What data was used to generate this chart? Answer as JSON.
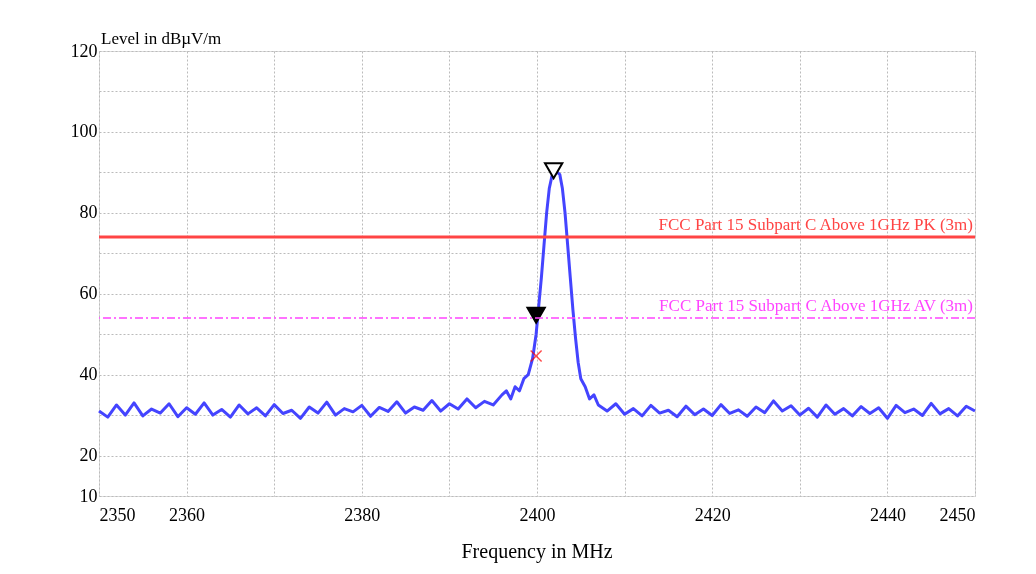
{
  "chart_data": {
    "type": "line",
    "xlabel": "Frequency in MHz",
    "ylabel": "Level in dBµV/m",
    "xlim": [
      2350,
      2450
    ],
    "xticks": [
      2350,
      2360,
      {
        "value": 2370,
        "label": null
      },
      2380,
      {
        "value": 2390,
        "label": null
      },
      2400,
      {
        "value": 2410,
        "label": null
      },
      2420,
      {
        "value": 2430,
        "label": null
      },
      2440,
      2450
    ],
    "ylim": [
      10,
      120
    ],
    "yticks": [
      10,
      20,
      {
        "value": 30,
        "label": null
      },
      40,
      {
        "value": 50,
        "label": null
      },
      60,
      {
        "value": 70,
        "label": null
      },
      80,
      {
        "value": 90,
        "label": null
      },
      100,
      {
        "value": 110,
        "label": null
      },
      120
    ],
    "grid": true,
    "line_style": "solid",
    "marker": "none",
    "series": [
      {
        "type": "line",
        "color": "#4444ff",
        "x": [
          2350,
          2351,
          2352,
          2353,
          2354,
          2355,
          2356,
          2357,
          2358,
          2359,
          2360,
          2361,
          2362,
          2363,
          2364,
          2365,
          2366,
          2367,
          2368,
          2369,
          2370,
          2371,
          2372,
          2373,
          2374,
          2375,
          2376,
          2377,
          2378,
          2379,
          2380,
          2381,
          2382,
          2383,
          2384,
          2385,
          2386,
          2387,
          2388,
          2389,
          2390,
          2391,
          2392,
          2393,
          2394,
          2395,
          2396,
          2396.5,
          2397,
          2397.5,
          2398,
          2398.5,
          2399,
          2399.5,
          2399.9,
          2400.2,
          2400.5,
          2400.8,
          2401.1,
          2401.4,
          2401.7,
          2402,
          2402.3,
          2402.6,
          2402.9,
          2403.2,
          2403.5,
          2403.8,
          2404.1,
          2404.4,
          2404.7,
          2405,
          2405.5,
          2406,
          2406.5,
          2407,
          2408,
          2409,
          2410,
          2411,
          2412,
          2413,
          2414,
          2415,
          2416,
          2417,
          2418,
          2419,
          2420,
          2421,
          2422,
          2423,
          2424,
          2425,
          2426,
          2427,
          2428,
          2429,
          2430,
          2431,
          2432,
          2433,
          2434,
          2435,
          2436,
          2437,
          2438,
          2439,
          2440,
          2441,
          2442,
          2443,
          2444,
          2445,
          2446,
          2447,
          2448,
          2449,
          2450
        ],
        "values": [
          31,
          29.5,
          32.5,
          30,
          33,
          29.8,
          31.5,
          30.5,
          32.8,
          29.6,
          31.8,
          30.2,
          33,
          30,
          31.4,
          29.5,
          32.5,
          30.3,
          31.8,
          29.8,
          32.6,
          30.4,
          31.2,
          29.2,
          32,
          30.5,
          33.2,
          30,
          31.6,
          30.8,
          32.4,
          29.7,
          31.9,
          30.9,
          33.3,
          30.5,
          32,
          31.2,
          33.6,
          31,
          32.8,
          31.5,
          34,
          31.8,
          33.4,
          32.5,
          35,
          36,
          34,
          37,
          36,
          39,
          40,
          44,
          50,
          57,
          64,
          72,
          80,
          86,
          89,
          90.5,
          90,
          89.5,
          86,
          80,
          72,
          64,
          56,
          49,
          43,
          39,
          37,
          34,
          35,
          32.5,
          31,
          32.8,
          30.2,
          31.6,
          29.8,
          32.4,
          30.5,
          31.2,
          29.6,
          32.2,
          30.1,
          31.5,
          29.9,
          32.6,
          30.4,
          31.3,
          29.7,
          32,
          30.6,
          33.5,
          31,
          32.3,
          30,
          31.7,
          29.5,
          32.5,
          30.2,
          31.6,
          29.8,
          32.1,
          30.4,
          31.8,
          29.2,
          32.4,
          30.6,
          31.5,
          29.9,
          32.9,
          30.3,
          31.6,
          29.8,
          32.2,
          31
        ]
      },
      {
        "type": "scatter",
        "marker": "triangle",
        "color": "#ffffff",
        "x": [
          2401.9
        ],
        "values": [
          90.4
        ]
      },
      {
        "type": "scatter",
        "marker": "triangle",
        "color": "#000000",
        "x": [
          2399.9
        ],
        "values": [
          54.7
        ]
      },
      {
        "type": "scatter",
        "marker": "cross",
        "color": "#ff0000",
        "x": [
          2399.9
        ],
        "values": [
          44.6
        ]
      }
    ],
    "ref_lines": [
      {
        "axis": "y",
        "value": 74,
        "label": "FCC Part 15 Subpart C Above 1GHz  PK (3m)",
        "color": "#ff4444",
        "line_style": "solid"
      },
      {
        "axis": "y",
        "value": 54,
        "label": "FCC Part 15 Subpart C Above 1GHz  AV (3m)",
        "color": "#ff44ff",
        "line_style": "dashed"
      }
    ]
  }
}
